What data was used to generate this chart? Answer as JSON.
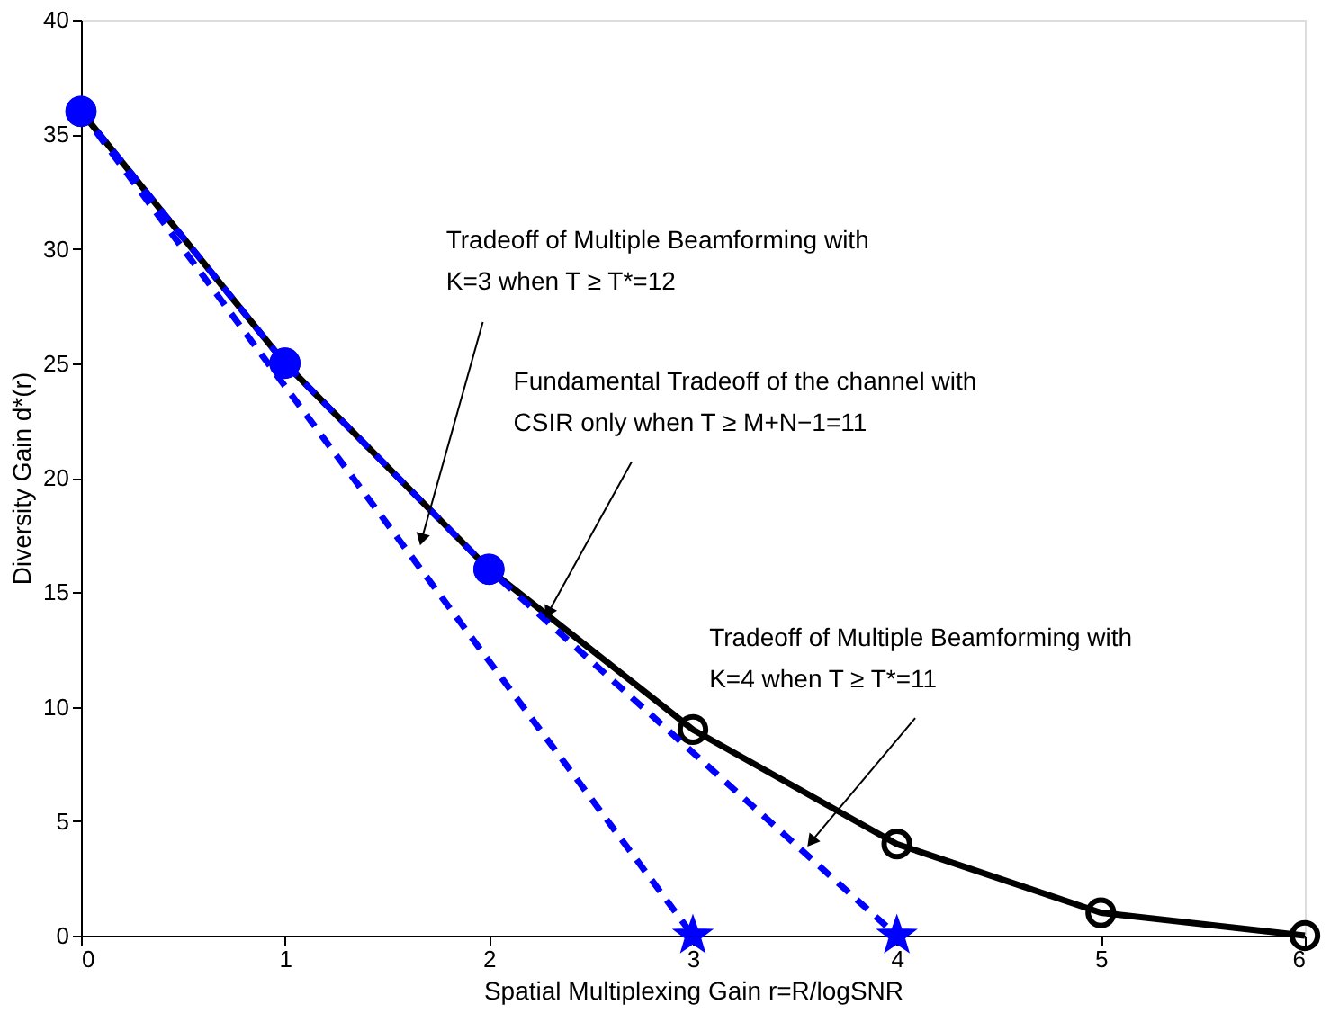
{
  "chart_data": {
    "type": "line",
    "xlabel": "Spatial Multiplexing Gain r=R/logSNR",
    "ylabel": "Diversity Gain d*(r)",
    "xlim": [
      0,
      6
    ],
    "xticks": [
      0,
      1,
      2,
      3,
      4,
      5,
      6
    ],
    "ylim": [
      0,
      40
    ],
    "yticks": [
      0,
      5,
      10,
      15,
      20,
      25,
      30,
      35,
      40
    ],
    "grid": false,
    "series": [
      {
        "type": "line",
        "color": "#000000",
        "marker": "circle",
        "line_style": "solid",
        "x": [
          0,
          1,
          2,
          3,
          4,
          5,
          6
        ],
        "values": [
          36,
          25,
          16,
          9,
          4,
          1,
          0
        ]
      },
      {
        "type": "line",
        "color": "#0000ff",
        "marker": "none",
        "line_style": "dashed",
        "x": [
          0,
          3
        ],
        "values": [
          36,
          0
        ]
      },
      {
        "type": "line",
        "color": "#0000ff",
        "marker": "none",
        "line_style": "dashed",
        "x": [
          0,
          1,
          2,
          4
        ],
        "values": [
          36,
          25,
          16,
          0
        ]
      },
      {
        "type": "scatter",
        "color": "#0000ff",
        "marker": "circle",
        "x": [
          0,
          1,
          2
        ],
        "values": [
          36,
          25,
          16
        ]
      },
      {
        "type": "scatter",
        "color": "#0000ff",
        "marker": "star",
        "x": [
          3,
          4
        ],
        "values": [
          0,
          0
        ]
      }
    ],
    "annotations": [
      {
        "text": "Tradeoff of Multiple Beamforming with\nK=3  when T ≥ T*=12",
        "x": 1.67,
        "y": 17.3
      },
      {
        "text": "Fundamental Tradeoff of the channel with\nCSIR only when T ≥ M+N−1=11",
        "x": 2.29,
        "y": 14.1
      },
      {
        "text": "Tradeoff of Multiple Beamforming with\nK=4  when T ≥ T*=11",
        "x": 3.58,
        "y": 4.1
      }
    ]
  }
}
